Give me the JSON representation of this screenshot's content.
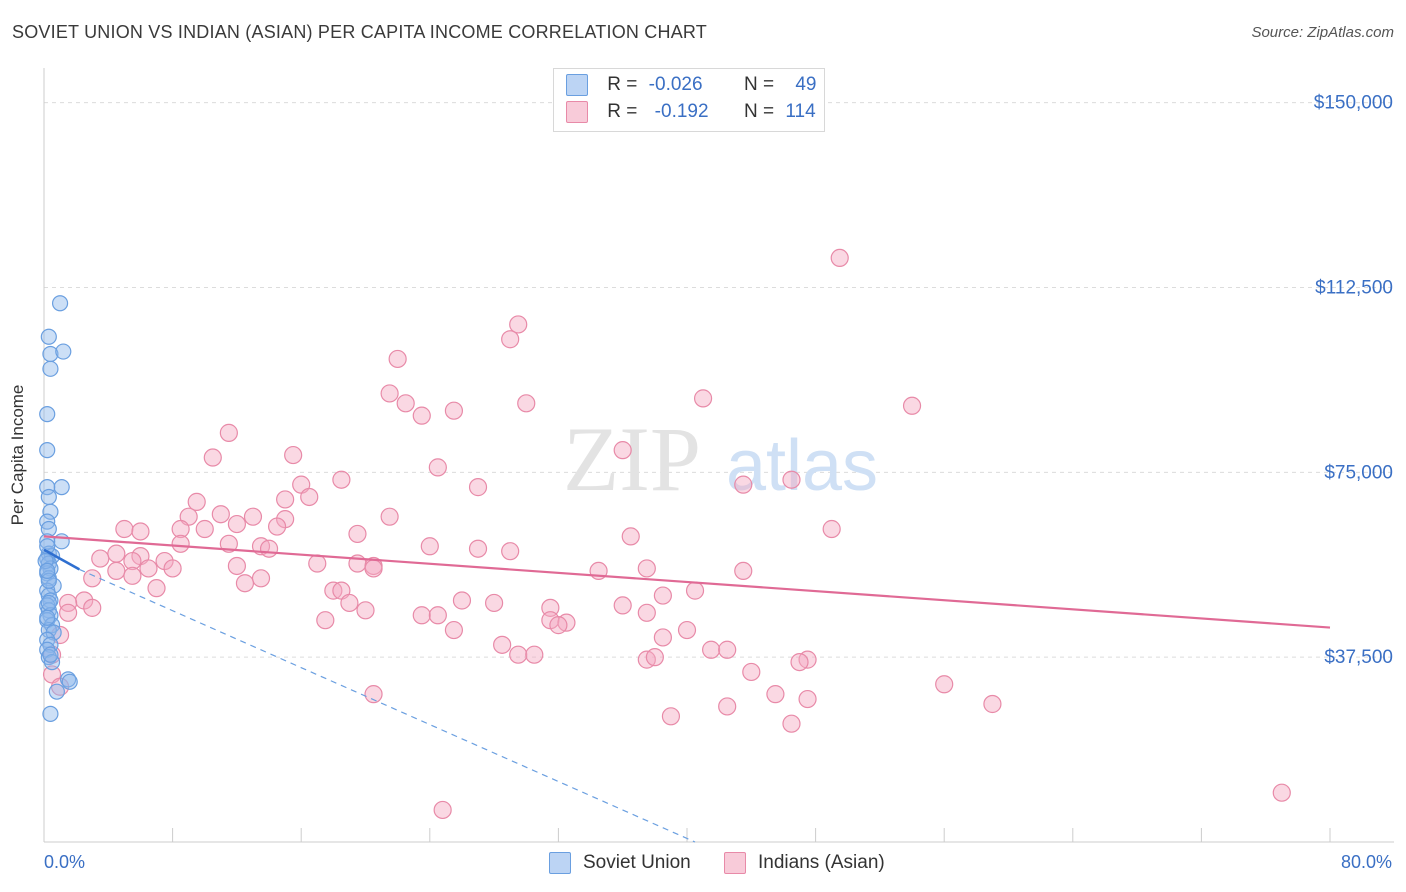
{
  "title": "SOVIET UNION VS INDIAN (ASIAN) PER CAPITA INCOME CORRELATION CHART",
  "source": "Source: ZipAtlas.com",
  "watermark": {
    "zip": "ZIP",
    "atlas": "atlas"
  },
  "legend": {
    "r_label": "R =",
    "n_label": "N =",
    "soviet": {
      "r": "-0.026",
      "n": "49",
      "color": "#8fb8ec"
    },
    "indians": {
      "r": "-0.192",
      "n": "114",
      "color": "#f4a8c0"
    }
  },
  "bottom_legend": {
    "soviet": "Soviet Union",
    "indians": "Indians (Asian)"
  },
  "chart_data": {
    "type": "scatter",
    "title": "SOVIET UNION VS INDIAN (ASIAN) PER CAPITA INCOME CORRELATION CHART",
    "xlabel": "",
    "ylabel": "Per Capita Income",
    "xlim": [
      0,
      80
    ],
    "ylim": [
      0,
      155000
    ],
    "x_tick_labels": {
      "min": "0.0%",
      "max": "80.0%"
    },
    "y_ticks": [
      {
        "value": 37500,
        "label": "$37,500"
      },
      {
        "value": 75000,
        "label": "$75,000"
      },
      {
        "value": 112500,
        "label": "$112,500"
      },
      {
        "value": 150000,
        "label": "$150,000"
      }
    ],
    "series": [
      {
        "name": "Soviet Union",
        "color": "#8fb8ec",
        "stroke": "#6a9fe0",
        "line_color": "#2f6fd0",
        "trend_solid": {
          "x0": 0.0,
          "y0": 59300,
          "x1": 2.2,
          "y1": 55300
        },
        "trend_dashed": {
          "x0": 2.2,
          "y0": 55300,
          "x1": 40.5,
          "y1": 0
        },
        "points": [
          [
            1.0,
            109300
          ],
          [
            0.3,
            102500
          ],
          [
            0.4,
            99000
          ],
          [
            1.2,
            99500
          ],
          [
            0.4,
            96000
          ],
          [
            0.2,
            86800
          ],
          [
            0.2,
            79500
          ],
          [
            1.1,
            72000
          ],
          [
            0.2,
            72000
          ],
          [
            0.3,
            70000
          ],
          [
            0.4,
            67000
          ],
          [
            0.2,
            65000
          ],
          [
            0.3,
            63500
          ],
          [
            1.1,
            61000
          ],
          [
            0.2,
            61000
          ],
          [
            0.3,
            58500
          ],
          [
            0.5,
            58000
          ],
          [
            0.2,
            57500
          ],
          [
            0.3,
            56500
          ],
          [
            0.4,
            55500
          ],
          [
            0.2,
            54500
          ],
          [
            0.3,
            53500
          ],
          [
            0.6,
            52000
          ],
          [
            0.2,
            51000
          ],
          [
            0.3,
            50000
          ],
          [
            0.4,
            49000
          ],
          [
            0.2,
            48000
          ],
          [
            0.3,
            47000
          ],
          [
            0.4,
            46000
          ],
          [
            0.2,
            45000
          ],
          [
            0.5,
            44000
          ],
          [
            0.3,
            43000
          ],
          [
            0.6,
            42500
          ],
          [
            0.2,
            41000
          ],
          [
            0.4,
            40000
          ],
          [
            0.2,
            39000
          ],
          [
            0.3,
            37500
          ],
          [
            0.5,
            36500
          ],
          [
            1.5,
            33000
          ],
          [
            1.6,
            32500
          ],
          [
            0.8,
            30500
          ],
          [
            0.4,
            26000
          ],
          [
            0.2,
            45500
          ],
          [
            0.3,
            53000
          ],
          [
            0.1,
            57000
          ],
          [
            0.2,
            60000
          ],
          [
            0.4,
            38000
          ],
          [
            0.3,
            48500
          ],
          [
            0.2,
            55000
          ]
        ]
      },
      {
        "name": "Indians (Asian)",
        "color": "#f4a8c0",
        "stroke": "#e88aa8",
        "line_color": "#e06a95",
        "trend": {
          "x0": 0.0,
          "y0": 62000,
          "x1": 80.0,
          "y1": 43500
        },
        "points": [
          [
            49.5,
            118500
          ],
          [
            29.5,
            105000
          ],
          [
            29.0,
            102000
          ],
          [
            22.0,
            98000
          ],
          [
            41.0,
            90000
          ],
          [
            21.5,
            91000
          ],
          [
            30.0,
            89000
          ],
          [
            22.5,
            89000
          ],
          [
            25.5,
            87500
          ],
          [
            23.5,
            86500
          ],
          [
            54.0,
            88500
          ],
          [
            36.0,
            79500
          ],
          [
            11.5,
            83000
          ],
          [
            15.5,
            78500
          ],
          [
            10.5,
            78000
          ],
          [
            24.5,
            76000
          ],
          [
            46.5,
            73500
          ],
          [
            18.5,
            73500
          ],
          [
            43.5,
            72500
          ],
          [
            16.0,
            72500
          ],
          [
            27.0,
            72000
          ],
          [
            16.5,
            70000
          ],
          [
            15.0,
            69500
          ],
          [
            9.5,
            69000
          ],
          [
            11.0,
            66500
          ],
          [
            13.0,
            66000
          ],
          [
            21.5,
            66000
          ],
          [
            15.0,
            65500
          ],
          [
            9.0,
            66000
          ],
          [
            12.0,
            64500
          ],
          [
            8.5,
            63500
          ],
          [
            14.5,
            64000
          ],
          [
            10.0,
            63500
          ],
          [
            5.0,
            63500
          ],
          [
            6.0,
            63000
          ],
          [
            19.5,
            62500
          ],
          [
            49.0,
            63500
          ],
          [
            36.5,
            62000
          ],
          [
            8.5,
            60500
          ],
          [
            11.5,
            60500
          ],
          [
            13.5,
            60000
          ],
          [
            14.0,
            59500
          ],
          [
            24.0,
            60000
          ],
          [
            27.0,
            59500
          ],
          [
            29.0,
            59000
          ],
          [
            4.5,
            58500
          ],
          [
            6.0,
            58000
          ],
          [
            3.5,
            57500
          ],
          [
            5.5,
            57000
          ],
          [
            7.5,
            57000
          ],
          [
            17.0,
            56500
          ],
          [
            19.5,
            56500
          ],
          [
            20.5,
            56000
          ],
          [
            12.0,
            56000
          ],
          [
            8.0,
            55500
          ],
          [
            6.5,
            55500
          ],
          [
            4.5,
            55000
          ],
          [
            20.5,
            55500
          ],
          [
            37.5,
            55500
          ],
          [
            43.5,
            55000
          ],
          [
            34.5,
            55000
          ],
          [
            5.5,
            54000
          ],
          [
            3.0,
            53500
          ],
          [
            13.5,
            53500
          ],
          [
            12.5,
            52500
          ],
          [
            7.0,
            51500
          ],
          [
            18.0,
            51000
          ],
          [
            18.5,
            51000
          ],
          [
            40.5,
            51000
          ],
          [
            38.5,
            50000
          ],
          [
            26.0,
            49000
          ],
          [
            19.0,
            48500
          ],
          [
            28.0,
            48500
          ],
          [
            36.0,
            48000
          ],
          [
            31.5,
            47500
          ],
          [
            20.0,
            47000
          ],
          [
            2.5,
            49000
          ],
          [
            1.5,
            48500
          ],
          [
            3.0,
            47500
          ],
          [
            1.5,
            46500
          ],
          [
            23.5,
            46000
          ],
          [
            24.5,
            46000
          ],
          [
            37.5,
            46500
          ],
          [
            17.5,
            45000
          ],
          [
            31.5,
            45000
          ],
          [
            32.5,
            44500
          ],
          [
            32.0,
            44000
          ],
          [
            25.5,
            43000
          ],
          [
            40.0,
            43000
          ],
          [
            38.5,
            41500
          ],
          [
            1.0,
            42000
          ],
          [
            28.5,
            40000
          ],
          [
            41.5,
            39000
          ],
          [
            42.5,
            39000
          ],
          [
            29.5,
            38000
          ],
          [
            30.5,
            38000
          ],
          [
            37.5,
            37000
          ],
          [
            38.0,
            37500
          ],
          [
            47.5,
            37000
          ],
          [
            47.0,
            36500
          ],
          [
            0.5,
            38000
          ],
          [
            0.5,
            34000
          ],
          [
            1.0,
            31500
          ],
          [
            44.0,
            34500
          ],
          [
            56.0,
            32000
          ],
          [
            20.5,
            30000
          ],
          [
            45.5,
            30000
          ],
          [
            47.5,
            29000
          ],
          [
            59.0,
            28000
          ],
          [
            42.5,
            27500
          ],
          [
            39.0,
            25500
          ],
          [
            46.5,
            24000
          ],
          [
            24.8,
            6500
          ],
          [
            77.0,
            10000
          ]
        ]
      }
    ]
  }
}
